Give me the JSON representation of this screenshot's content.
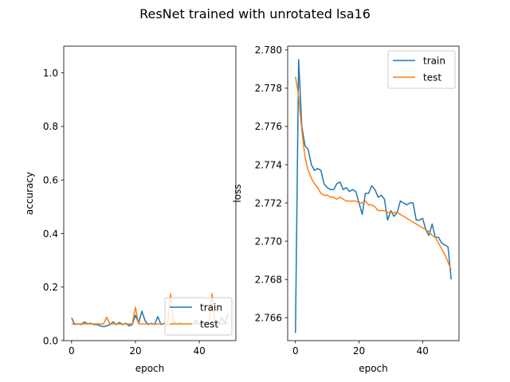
{
  "figure": {
    "suptitle": "ResNet trained with unrotated lsa16"
  },
  "chart_data": [
    {
      "type": "line",
      "xlabel": "epoch",
      "ylabel": "accuracy",
      "xlim": [
        -2.45,
        51.45
      ],
      "ylim": [
        0,
        1.1
      ],
      "xticks": [
        0,
        20,
        40
      ],
      "yticks": [
        0.0,
        0.2,
        0.4,
        0.6,
        0.8,
        1.0
      ],
      "ytick_labels": [
        "0.0",
        "0.2",
        "0.4",
        "0.6",
        "0.8",
        "1.0"
      ],
      "legend_position": "lower-right",
      "grid": false,
      "series": [
        {
          "name": "train",
          "color": "#1f77b4",
          "x": [
            0,
            1,
            2,
            3,
            4,
            5,
            6,
            7,
            8,
            9,
            10,
            11,
            12,
            13,
            14,
            15,
            16,
            17,
            18,
            19,
            20,
            21,
            22,
            23,
            24,
            25,
            26,
            27,
            28,
            29,
            30,
            31,
            32,
            33,
            34,
            35,
            36,
            37,
            38,
            39,
            40,
            41,
            42,
            43,
            44,
            45,
            46,
            47,
            48,
            49
          ],
          "y": [
            0.085,
            0.06,
            0.063,
            0.06,
            0.07,
            0.062,
            0.065,
            0.06,
            0.06,
            0.055,
            0.052,
            0.055,
            0.06,
            0.07,
            0.06,
            0.068,
            0.06,
            0.065,
            0.055,
            0.06,
            0.095,
            0.065,
            0.11,
            0.075,
            0.06,
            0.065,
            0.06,
            0.09,
            0.06,
            0.065,
            0.06,
            0.06,
            0.07,
            0.062,
            0.068,
            0.06,
            0.062,
            0.065,
            0.06,
            0.075,
            0.06,
            0.068,
            0.065,
            0.06,
            0.07,
            0.065,
            0.06,
            0.085,
            0.065,
            0.1
          ]
        },
        {
          "name": "test",
          "color": "#ff7f0e",
          "x": [
            0,
            1,
            2,
            3,
            4,
            5,
            6,
            7,
            8,
            9,
            10,
            11,
            12,
            13,
            14,
            15,
            16,
            17,
            18,
            19,
            20,
            21,
            22,
            23,
            24,
            25,
            26,
            27,
            28,
            29,
            30,
            31,
            32,
            33,
            34,
            35,
            36,
            37,
            38,
            39,
            40,
            41,
            42,
            43,
            44,
            45,
            46,
            47,
            48,
            49
          ],
          "y": [
            0.0625,
            0.0625,
            0.0625,
            0.0625,
            0.0625,
            0.0625,
            0.0625,
            0.0625,
            0.0625,
            0.0625,
            0.0625,
            0.0875,
            0.0625,
            0.0625,
            0.0625,
            0.0625,
            0.0625,
            0.0625,
            0.0625,
            0.0625,
            0.125,
            0.0625,
            0.0625,
            0.0625,
            0.0625,
            0.0625,
            0.0625,
            0.0625,
            0.0625,
            0.0625,
            0.0625,
            0.175,
            0.0625,
            0.0625,
            0.0625,
            0.0625,
            0.0625,
            0.0625,
            0.0625,
            0.0625,
            0.0625,
            0.0625,
            0.0625,
            0.0625,
            0.175,
            0.0625,
            0.0625,
            0.0625,
            0.0625,
            0.0625
          ]
        }
      ]
    },
    {
      "type": "line",
      "xlabel": "epoch",
      "ylabel": "loss",
      "xlim": [
        -2.45,
        51.45
      ],
      "ylim": [
        2.7648,
        2.7802
      ],
      "xticks": [
        0,
        20,
        40
      ],
      "yticks": [
        2.766,
        2.768,
        2.77,
        2.772,
        2.774,
        2.776,
        2.778,
        2.78
      ],
      "ytick_labels": [
        "2.766",
        "2.768",
        "2.770",
        "2.772",
        "2.774",
        "2.776",
        "2.778",
        "2.780"
      ],
      "legend_position": "upper-right",
      "grid": false,
      "series": [
        {
          "name": "train",
          "color": "#1f77b4",
          "x": [
            0,
            1,
            2,
            3,
            4,
            5,
            6,
            7,
            8,
            9,
            10,
            11,
            12,
            13,
            14,
            15,
            16,
            17,
            18,
            19,
            20,
            21,
            22,
            23,
            24,
            25,
            26,
            27,
            28,
            29,
            30,
            31,
            32,
            33,
            34,
            35,
            36,
            37,
            38,
            39,
            40,
            41,
            42,
            43,
            44,
            45,
            46,
            47,
            48,
            49
          ],
          "y": [
            2.7652,
            2.7795,
            2.776,
            2.775,
            2.7748,
            2.774,
            2.7737,
            2.7738,
            2.7737,
            2.773,
            2.7728,
            2.7727,
            2.7727,
            2.773,
            2.7731,
            2.7727,
            2.7728,
            2.7726,
            2.7727,
            2.7726,
            2.772,
            2.7714,
            2.7725,
            2.7725,
            2.7729,
            2.7727,
            2.7723,
            2.7724,
            2.7722,
            2.7711,
            2.7716,
            2.7713,
            2.7715,
            2.7721,
            2.772,
            2.7719,
            2.772,
            2.772,
            2.7711,
            2.7711,
            2.7712,
            2.7706,
            2.7703,
            2.7709,
            2.7702,
            2.7702,
            2.7699,
            2.7698,
            2.7697,
            2.768
          ]
        },
        {
          "name": "test",
          "color": "#ff7f0e",
          "x": [
            0,
            1,
            2,
            3,
            4,
            5,
            6,
            7,
            8,
            9,
            10,
            11,
            12,
            13,
            14,
            15,
            16,
            17,
            18,
            19,
            20,
            21,
            22,
            23,
            24,
            25,
            26,
            27,
            28,
            29,
            30,
            31,
            32,
            33,
            34,
            35,
            36,
            37,
            38,
            39,
            40,
            41,
            42,
            43,
            44,
            45,
            46,
            47,
            48,
            49
          ],
          "y": [
            2.7786,
            2.7776,
            2.7758,
            2.7744,
            2.7737,
            2.7733,
            2.773,
            2.7728,
            2.7725,
            2.7724,
            2.7724,
            2.7723,
            2.7723,
            2.7722,
            2.7723,
            2.7722,
            2.7721,
            2.7721,
            2.7721,
            2.7721,
            2.772,
            2.772,
            2.7721,
            2.7719,
            2.7719,
            2.7718,
            2.7716,
            2.7716,
            2.7716,
            2.7715,
            2.7715,
            2.7715,
            2.7715,
            2.7714,
            2.7713,
            2.7712,
            2.7711,
            2.771,
            2.7709,
            2.7708,
            2.7707,
            2.7706,
            2.7705,
            2.7703,
            2.7702,
            2.7699,
            2.7696,
            2.7693,
            2.7689,
            2.7685
          ]
        }
      ]
    }
  ]
}
